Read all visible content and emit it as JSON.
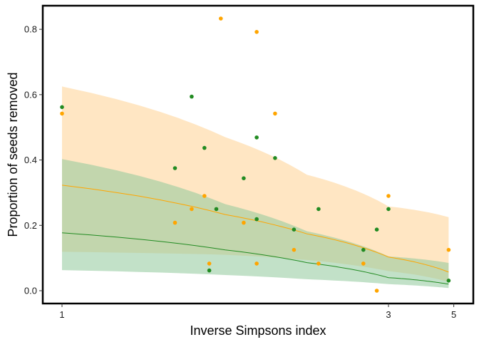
{
  "chart_data": {
    "type": "scatter",
    "title": "",
    "xlabel": "Inverse Simpsons index",
    "ylabel": "Proportion of seeds removed",
    "x_scale": "reciprocal",
    "xlim": [
      1,
      5
    ],
    "ylim": [
      0,
      0.85
    ],
    "x_ticks": [
      1,
      3,
      5
    ],
    "x_tick_labels": [
      "1",
      "3",
      "5"
    ],
    "y_ticks": [
      0.0,
      0.2,
      0.4,
      0.6,
      0.8
    ],
    "y_tick_labels": [
      "0.0",
      "0.2",
      "0.4",
      "0.6",
      "0.8"
    ],
    "grid": false,
    "legend": "none",
    "series": [
      {
        "color": "#ffa500",
        "band_color": "#ffe5c0",
        "points": [
          {
            "x": 1.0,
            "y": 0.542
          },
          {
            "x": 1.3,
            "y": 0.208
          },
          {
            "x": 1.36,
            "y": 0.25
          },
          {
            "x": 1.41,
            "y": 0.29
          },
          {
            "x": 1.43,
            "y": 0.083
          },
          {
            "x": 1.48,
            "y": 0.833
          },
          {
            "x": 1.59,
            "y": 0.208
          },
          {
            "x": 1.66,
            "y": 0.792
          },
          {
            "x": 1.66,
            "y": 0.083
          },
          {
            "x": 1.77,
            "y": 0.542
          },
          {
            "x": 1.9,
            "y": 0.125
          },
          {
            "x": 2.1,
            "y": 0.083
          },
          {
            "x": 2.6,
            "y": 0.083
          },
          {
            "x": 2.8,
            "y": 0.0
          },
          {
            "x": 3.0,
            "y": 0.29
          },
          {
            "x": 4.75,
            "y": 0.125
          }
        ],
        "fit": [
          {
            "x": 1.0,
            "y": 0.323
          },
          {
            "x": 1.5,
            "y": 0.233
          },
          {
            "x": 2.0,
            "y": 0.174
          },
          {
            "x": 3.0,
            "y": 0.103
          },
          {
            "x": 4.75,
            "y": 0.057
          }
        ],
        "ci_upper": [
          {
            "x": 1.0,
            "y": 0.625
          },
          {
            "x": 1.5,
            "y": 0.47
          },
          {
            "x": 2.0,
            "y": 0.355
          },
          {
            "x": 3.0,
            "y": 0.258
          },
          {
            "x": 4.75,
            "y": 0.225
          }
        ],
        "ci_lower": [
          {
            "x": 1.0,
            "y": 0.119
          },
          {
            "x": 1.5,
            "y": 0.11
          },
          {
            "x": 2.0,
            "y": 0.094
          },
          {
            "x": 3.0,
            "y": 0.06
          },
          {
            "x": 4.75,
            "y": 0.027
          }
        ]
      },
      {
        "color": "#228b22",
        "band_color": "#8fc99a",
        "points": [
          {
            "x": 1.0,
            "y": 0.562
          },
          {
            "x": 1.3,
            "y": 0.375
          },
          {
            "x": 1.36,
            "y": 0.594
          },
          {
            "x": 1.41,
            "y": 0.437
          },
          {
            "x": 1.43,
            "y": 0.062
          },
          {
            "x": 1.46,
            "y": 0.25
          },
          {
            "x": 1.59,
            "y": 0.344
          },
          {
            "x": 1.66,
            "y": 0.469
          },
          {
            "x": 1.66,
            "y": 0.219
          },
          {
            "x": 1.77,
            "y": 0.406
          },
          {
            "x": 1.9,
            "y": 0.187
          },
          {
            "x": 2.1,
            "y": 0.25
          },
          {
            "x": 2.6,
            "y": 0.125
          },
          {
            "x": 2.8,
            "y": 0.187
          },
          {
            "x": 3.0,
            "y": 0.25
          },
          {
            "x": 4.75,
            "y": 0.031
          }
        ],
        "fit": [
          {
            "x": 1.0,
            "y": 0.177
          },
          {
            "x": 1.5,
            "y": 0.125
          },
          {
            "x": 2.0,
            "y": 0.086
          },
          {
            "x": 3.0,
            "y": 0.04
          },
          {
            "x": 4.75,
            "y": 0.02
          }
        ],
        "ci_upper": [
          {
            "x": 1.0,
            "y": 0.403
          },
          {
            "x": 1.5,
            "y": 0.265
          },
          {
            "x": 2.0,
            "y": 0.182
          },
          {
            "x": 3.0,
            "y": 0.105
          },
          {
            "x": 4.75,
            "y": 0.085
          }
        ],
        "ci_lower": [
          {
            "x": 1.0,
            "y": 0.063
          },
          {
            "x": 1.5,
            "y": 0.048
          },
          {
            "x": 2.0,
            "y": 0.035
          },
          {
            "x": 3.0,
            "y": 0.02
          },
          {
            "x": 4.75,
            "y": 0.008
          }
        ]
      }
    ]
  }
}
